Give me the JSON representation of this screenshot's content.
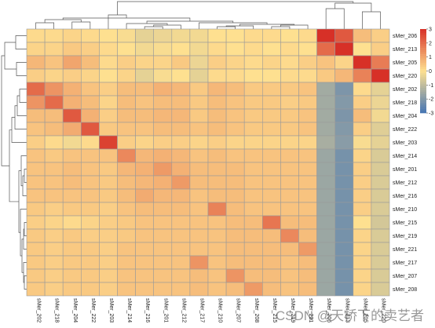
{
  "chart_data": {
    "type": "heatmap",
    "title": "",
    "rows": [
      "sMer_206",
      "sMer_213",
      "sMer_205",
      "sMer_220",
      "sMer_202",
      "sMer_218",
      "sMer_204",
      "sMer_222",
      "sMer_203",
      "sMer_214",
      "sMer_201",
      "sMer_212",
      "sMer_216",
      "sMer_210",
      "sMer_215",
      "sMer_219",
      "sMer_221",
      "sMer_217",
      "sMer_207",
      "sMer_208"
    ],
    "columns": [
      "sMer_202",
      "sMer_218",
      "sMer_204",
      "sMer_222",
      "sMer_203",
      "sMer_214",
      "sMer_216",
      "sMer_201",
      "sMer_212",
      "sMer_217",
      "sMer_210",
      "sMer_207",
      "sMer_208",
      "sMer_215",
      "sMer_219",
      "sMer_221",
      "sMer_206",
      "sMer_213",
      "sMer_205",
      "sMer_220"
    ],
    "values": [
      [
        0.1,
        0.1,
        0.2,
        0.1,
        0.0,
        -0.1,
        -0.4,
        -0.3,
        -0.2,
        -0.2,
        0.0,
        0.0,
        0.1,
        0.1,
        0.0,
        0.1,
        3.0,
        2.3,
        0.6,
        0.3
      ],
      [
        0.2,
        0.2,
        0.4,
        0.3,
        0.1,
        0.0,
        -0.2,
        -0.1,
        0.0,
        -0.2,
        0.1,
        0.0,
        0.1,
        0.0,
        0.1,
        0.0,
        2.0,
        3.0,
        0.0,
        0.3
      ],
      [
        0.7,
        0.5,
        1.0,
        0.6,
        0.1,
        0.3,
        0.2,
        0.2,
        0.4,
        -0.3,
        0.3,
        0.2,
        0.1,
        0.2,
        0.1,
        0.3,
        0.5,
        0.2,
        3.0,
        1.7
      ],
      [
        0.3,
        0.2,
        0.3,
        0.2,
        0.0,
        0.2,
        -0.4,
        -0.1,
        0.0,
        -0.4,
        0.1,
        0.1,
        0.0,
        0.0,
        0.1,
        0.1,
        0.4,
        0.7,
        1.6,
        3.0
      ],
      [
        2.0,
        1.3,
        0.8,
        0.5,
        0.3,
        0.6,
        0.6,
        0.8,
        0.7,
        0.4,
        0.7,
        0.6,
        0.4,
        0.4,
        0.4,
        0.5,
        -1.5,
        -2.1,
        0.1,
        -0.4
      ],
      [
        1.3,
        2.0,
        0.8,
        0.6,
        0.2,
        0.6,
        0.5,
        0.6,
        0.6,
        0.4,
        0.6,
        0.5,
        0.4,
        0.4,
        0.3,
        0.4,
        -1.5,
        -2.0,
        0.3,
        -0.3
      ],
      [
        0.6,
        0.6,
        2.3,
        0.8,
        0.3,
        0.6,
        0.6,
        0.7,
        0.7,
        0.4,
        0.6,
        0.5,
        0.4,
        0.4,
        0.4,
        0.5,
        -1.5,
        -2.1,
        0.6,
        -0.2
      ],
      [
        0.5,
        0.6,
        0.9,
        2.3,
        0.4,
        0.5,
        0.5,
        0.6,
        0.6,
        0.5,
        0.6,
        0.5,
        0.4,
        0.4,
        0.4,
        0.5,
        -1.5,
        -2.0,
        0.3,
        -0.5
      ],
      [
        0.3,
        0.1,
        -0.2,
        0.1,
        2.7,
        0.3,
        0.2,
        0.3,
        0.3,
        0.2,
        0.3,
        0.2,
        0.2,
        0.2,
        0.2,
        0.2,
        -1.4,
        -1.9,
        -0.1,
        -0.4
      ],
      [
        0.5,
        0.4,
        0.5,
        0.5,
        0.5,
        1.5,
        0.7,
        0.8,
        0.7,
        0.5,
        0.6,
        0.5,
        0.5,
        0.5,
        0.5,
        0.5,
        -1.6,
        -2.2,
        0.2,
        -0.6
      ],
      [
        0.5,
        0.5,
        0.6,
        0.5,
        0.4,
        0.7,
        0.8,
        1.2,
        0.8,
        0.6,
        0.6,
        0.6,
        0.5,
        0.5,
        0.5,
        0.5,
        -1.6,
        -2.2,
        0.3,
        -0.6
      ],
      [
        0.5,
        0.5,
        0.6,
        0.5,
        0.4,
        0.6,
        0.7,
        0.8,
        1.2,
        0.6,
        0.6,
        0.6,
        0.5,
        0.5,
        0.5,
        0.5,
        -1.6,
        -2.2,
        0.3,
        -0.6
      ],
      [
        0.5,
        0.5,
        0.5,
        0.5,
        0.4,
        0.6,
        0.9,
        0.7,
        0.7,
        0.5,
        0.6,
        0.6,
        0.5,
        0.5,
        0.5,
        0.5,
        -1.6,
        -2.2,
        0.3,
        -0.6
      ],
      [
        0.4,
        0.3,
        0.4,
        0.4,
        0.3,
        0.5,
        0.6,
        0.6,
        0.6,
        0.5,
        1.6,
        0.6,
        0.5,
        0.5,
        0.5,
        0.5,
        -1.6,
        -2.2,
        0.3,
        -0.6
      ],
      [
        0.3,
        0.2,
        0.1,
        0.2,
        0.3,
        0.4,
        0.5,
        0.5,
        0.5,
        0.5,
        0.5,
        0.6,
        0.6,
        1.8,
        0.6,
        0.6,
        -1.6,
        -2.2,
        0.0,
        -0.7
      ],
      [
        0.4,
        0.3,
        0.4,
        0.3,
        0.3,
        0.4,
        0.5,
        0.5,
        0.5,
        0.5,
        0.5,
        0.6,
        0.6,
        0.6,
        1.5,
        0.6,
        -1.6,
        -2.2,
        0.2,
        -0.6
      ],
      [
        0.4,
        0.3,
        0.4,
        0.4,
        0.3,
        0.5,
        0.5,
        0.5,
        0.5,
        0.5,
        0.5,
        0.6,
        0.6,
        0.6,
        0.6,
        1.2,
        -1.6,
        -2.2,
        0.2,
        -0.6
      ],
      [
        0.4,
        0.3,
        0.4,
        0.4,
        0.3,
        0.5,
        0.5,
        0.5,
        0.5,
        1.3,
        0.5,
        0.6,
        0.6,
        0.6,
        0.5,
        0.6,
        -1.6,
        -2.2,
        0.2,
        -0.6
      ],
      [
        0.4,
        0.3,
        0.4,
        0.4,
        0.3,
        0.5,
        0.5,
        0.5,
        0.5,
        0.6,
        0.5,
        1.3,
        0.6,
        0.6,
        0.5,
        0.6,
        -1.6,
        -2.2,
        0.2,
        -0.6
      ],
      [
        0.4,
        0.3,
        0.4,
        0.4,
        0.3,
        0.5,
        0.5,
        0.5,
        0.5,
        0.6,
        0.5,
        0.6,
        1.2,
        0.6,
        0.5,
        0.6,
        -1.6,
        -2.2,
        0.2,
        -0.6
      ]
    ],
    "scale": {
      "min": -3,
      "max": 3,
      "ticks": [
        3,
        2,
        1,
        0,
        -1,
        -2,
        -3
      ],
      "colors": [
        "#4575b4",
        "#fee090",
        "#d73027"
      ]
    },
    "dendrograms": {
      "rows": "left",
      "columns": "top"
    },
    "watermark": "CSDN @天桥下的卖艺者",
    "grid": true
  }
}
